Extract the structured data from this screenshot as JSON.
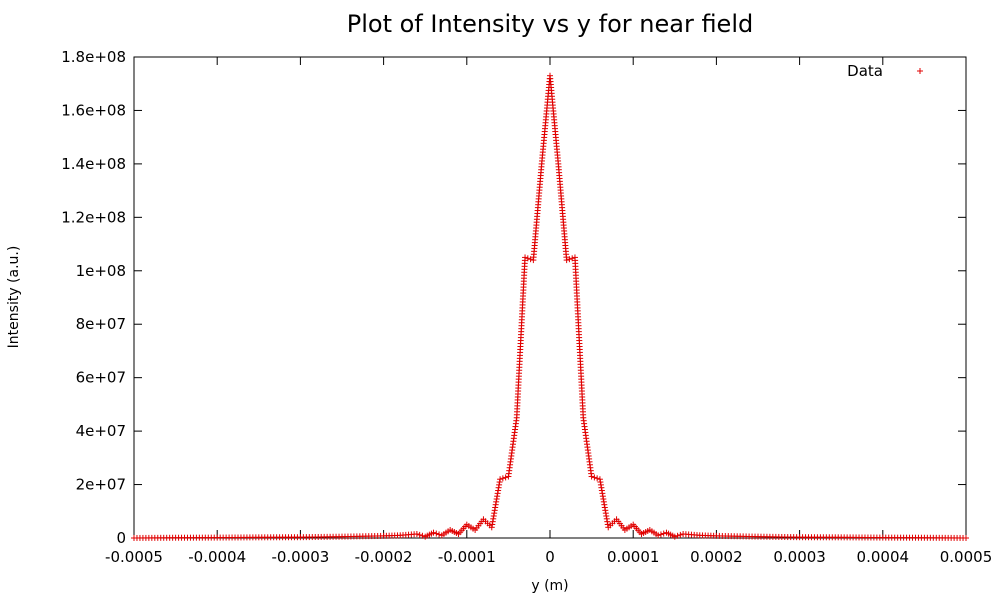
{
  "colors": {
    "series": "#e00000",
    "axis": "#000000",
    "background": "#ffffff"
  },
  "chart_data": {
    "type": "scatter",
    "title": "Plot of Intensity vs y for near field",
    "xlabel": "y (m)",
    "ylabel": "Intensity (a.u.)",
    "xlim": [
      -0.0005,
      0.0005
    ],
    "ylim": [
      0,
      180000000
    ],
    "xticks": [
      -0.0005,
      -0.0004,
      -0.0003,
      -0.0002,
      -0.0001,
      0,
      0.0001,
      0.0002,
      0.0003,
      0.0004,
      0.0005
    ],
    "xtick_labels": [
      "-0.0005",
      "-0.0004",
      "-0.0003",
      "-0.0002",
      "-0.0001",
      "0",
      "0.0001",
      "0.0002",
      "0.0003",
      "0.0004",
      "0.0005"
    ],
    "yticks": [
      0,
      20000000,
      40000000,
      60000000,
      80000000,
      100000000,
      120000000,
      140000000,
      160000000,
      180000000
    ],
    "ytick_labels": [
      "0",
      "2e+07",
      "4e+07",
      "6e+07",
      "8e+07",
      "1e+08",
      "1.2e+08",
      "1.4e+08",
      "1.6e+08",
      "1.8e+08"
    ],
    "grid": false,
    "legend": {
      "position": "top-right",
      "entries": [
        "Data"
      ]
    },
    "marker": "+",
    "series": [
      {
        "name": "Data",
        "points": [
          [
            -0.0005,
            0
          ],
          [
            -0.00045,
            100000
          ],
          [
            -0.0004,
            150000
          ],
          [
            -0.00035,
            250000
          ],
          [
            -0.0003,
            300000
          ],
          [
            -0.00025,
            500000
          ],
          [
            -0.0002,
            800000
          ],
          [
            -0.00018,
            1000000
          ],
          [
            -0.00016,
            1500000
          ],
          [
            -0.00015,
            500000
          ],
          [
            -0.00014,
            2000000
          ],
          [
            -0.00013,
            1000000
          ],
          [
            -0.00012,
            3000000
          ],
          [
            -0.00011,
            1500000
          ],
          [
            -0.0001,
            5000000
          ],
          [
            -9e-05,
            3000000
          ],
          [
            -8e-05,
            7000000
          ],
          [
            -7e-05,
            4000000
          ],
          [
            -6e-05,
            22000000
          ],
          [
            -5e-05,
            23000000
          ],
          [
            -4e-05,
            45000000
          ],
          [
            -3e-05,
            105000000
          ],
          [
            -2e-05,
            104000000
          ],
          [
            -1e-05,
            140000000
          ],
          [
            0,
            173000000
          ],
          [
            1e-05,
            140000000
          ],
          [
            2e-05,
            104000000
          ],
          [
            3e-05,
            105000000
          ],
          [
            4e-05,
            45000000
          ],
          [
            5e-05,
            23000000
          ],
          [
            6e-05,
            22000000
          ],
          [
            7e-05,
            4000000
          ],
          [
            8e-05,
            7000000
          ],
          [
            9e-05,
            3000000
          ],
          [
            0.0001,
            5000000
          ],
          [
            0.00011,
            1500000
          ],
          [
            0.00012,
            3000000
          ],
          [
            0.00013,
            1000000
          ],
          [
            0.00014,
            2000000
          ],
          [
            0.00015,
            500000
          ],
          [
            0.00016,
            1500000
          ],
          [
            0.00018,
            1000000
          ],
          [
            0.0002,
            800000
          ],
          [
            0.00025,
            500000
          ],
          [
            0.0003,
            300000
          ],
          [
            0.00035,
            250000
          ],
          [
            0.0004,
            150000
          ],
          [
            0.00045,
            100000
          ],
          [
            0.0005,
            0
          ]
        ]
      }
    ]
  }
}
